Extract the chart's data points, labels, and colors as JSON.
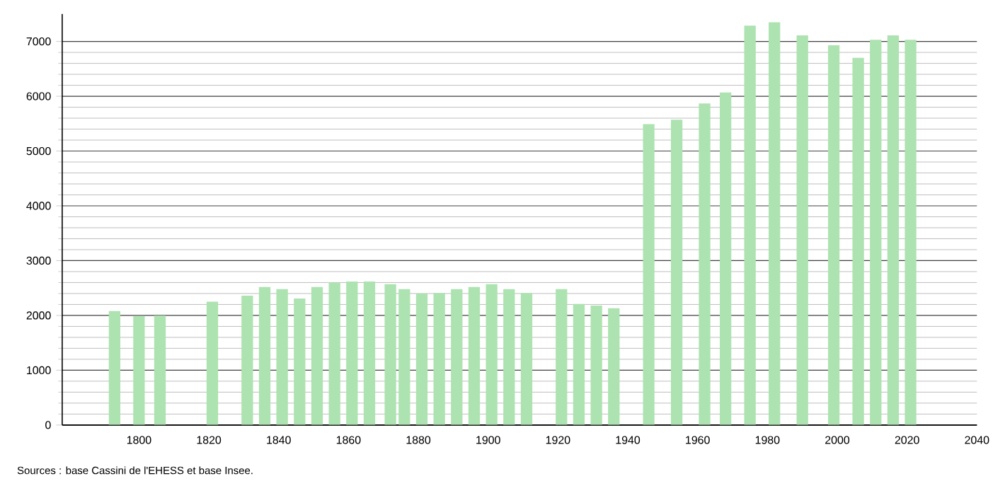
{
  "chart_data": {
    "type": "bar",
    "color": "#ade3b0",
    "x": [
      1793,
      1800,
      1806,
      1821,
      1831,
      1836,
      1841,
      1846,
      1851,
      1856,
      1861,
      1866,
      1872,
      1876,
      1881,
      1886,
      1891,
      1896,
      1901,
      1906,
      1911,
      1921,
      1926,
      1931,
      1936,
      1946,
      1954,
      1962,
      1968,
      1975,
      1982,
      1990,
      1999,
      2006,
      2011,
      2016,
      2021
    ],
    "values": [
      2080,
      1990,
      2000,
      2250,
      2360,
      2520,
      2480,
      2310,
      2520,
      2600,
      2620,
      2620,
      2570,
      2480,
      2400,
      2410,
      2480,
      2520,
      2570,
      2480,
      2410,
      2480,
      2210,
      2180,
      2130,
      5490,
      5570,
      5870,
      6070,
      7290,
      7350,
      7110,
      6930,
      6700,
      7030,
      7110,
      7030
    ],
    "xlim": [
      1778,
      2040
    ],
    "xticks": [
      1800,
      1820,
      1840,
      1860,
      1880,
      1900,
      1920,
      1940,
      1960,
      1980,
      2000,
      2020,
      2040
    ],
    "ylim": [
      0,
      7500
    ],
    "yticks": [
      0,
      1000,
      2000,
      3000,
      4000,
      5000,
      6000,
      7000
    ],
    "grid": "y",
    "annotations": [
      "Sources : base Cassini de l'EHESS et base Insee."
    ]
  }
}
